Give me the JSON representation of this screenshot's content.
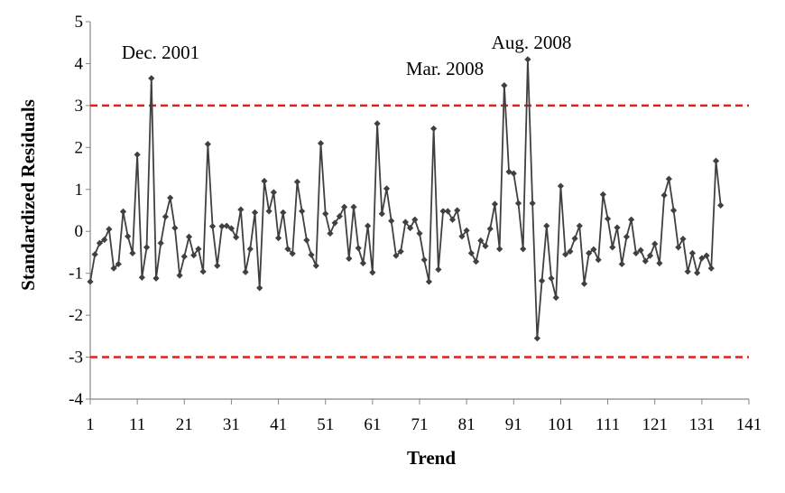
{
  "chart_data": {
    "type": "line",
    "xlabel": "Trend",
    "ylabel": "Standardized Residuals",
    "xlim": [
      1,
      141
    ],
    "ylim": [
      -4,
      5
    ],
    "x_ticks": [
      1,
      11,
      21,
      31,
      41,
      51,
      61,
      71,
      81,
      91,
      101,
      111,
      121,
      131,
      141
    ],
    "y_ticks": [
      -4,
      -3,
      -2,
      -1,
      0,
      1,
      2,
      3,
      4,
      5
    ],
    "grid": false,
    "series": [
      {
        "color": "#404040",
        "marker": "diamond",
        "values": [
          -1.2,
          -0.55,
          -0.28,
          -0.2,
          0.05,
          -0.88,
          -0.78,
          0.47,
          -0.12,
          -0.52,
          1.83,
          -1.1,
          -0.38,
          3.65,
          -1.12,
          -0.28,
          0.35,
          0.8,
          0.08,
          -1.05,
          -0.6,
          -0.13,
          -0.57,
          -0.42,
          -0.96,
          2.08,
          0.12,
          -0.82,
          0.12,
          0.13,
          0.07,
          -0.14,
          0.52,
          -0.97,
          -0.42,
          0.45,
          -1.35,
          1.2,
          0.48,
          0.93,
          -0.16,
          0.45,
          -0.42,
          -0.53,
          1.18,
          0.48,
          -0.21,
          -0.56,
          -0.82,
          2.1,
          0.42,
          -0.05,
          0.2,
          0.36,
          0.58,
          -0.65,
          0.58,
          -0.4,
          -0.76,
          0.13,
          -0.98,
          2.57,
          0.42,
          1.02,
          0.25,
          -0.58,
          -0.48,
          0.22,
          0.08,
          0.28,
          -0.05,
          -0.68,
          -1.2,
          2.45,
          -0.91,
          0.48,
          0.48,
          0.28,
          0.5,
          -0.12,
          0.02,
          -0.52,
          -0.72,
          -0.22,
          -0.35,
          0.06,
          0.65,
          -0.42,
          3.48,
          1.42,
          1.38,
          0.67,
          -0.42,
          4.1,
          0.67,
          -2.55,
          -1.18,
          0.13,
          -1.12,
          -1.58,
          1.08,
          -0.55,
          -0.48,
          -0.17,
          0.13,
          -1.25,
          -0.52,
          -0.43,
          -0.68,
          0.88,
          0.3,
          -0.38,
          0.09,
          -0.78,
          -0.13,
          0.28,
          -0.52,
          -0.45,
          -0.71,
          -0.58,
          -0.3,
          -0.76,
          0.86,
          1.25,
          0.5,
          -0.38,
          -0.18,
          -0.96,
          -0.52,
          -0.99,
          -0.64,
          -0.58,
          -0.88,
          1.68,
          0.62
        ]
      }
    ],
    "reference_lines": [
      {
        "y": 3,
        "color": "#e0201b",
        "style": "dashed"
      },
      {
        "y": -3,
        "color": "#e0201b",
        "style": "dashed"
      }
    ],
    "annotations": [
      {
        "text": "Dec. 2001",
        "x": 14,
        "y": 3.65
      },
      {
        "text": "Mar. 2008",
        "x": 89,
        "y": 3.48
      },
      {
        "text": "Aug. 2008",
        "x": 94,
        "y": 4.1
      }
    ]
  }
}
